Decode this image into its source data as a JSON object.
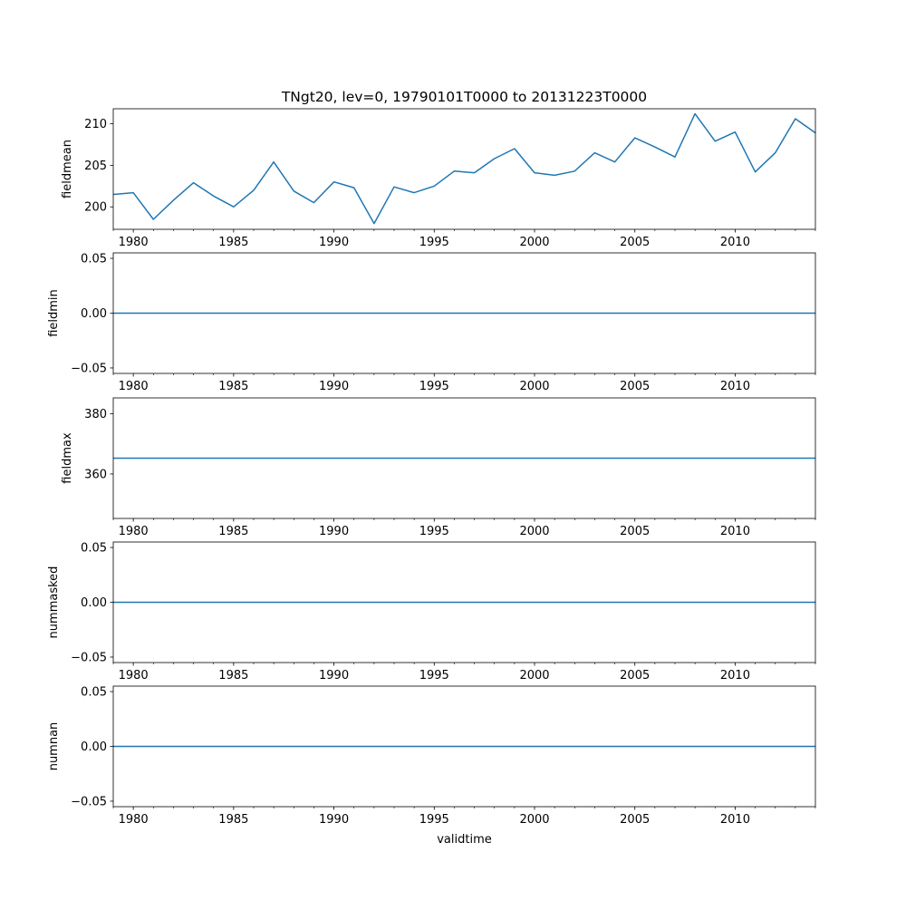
{
  "chart_data": [
    {
      "type": "line",
      "title": "TNgt20, lev=0, 19790101T0000 to 20131223T0000",
      "ylabel": "fieldmean",
      "xlabel": "",
      "xlim": [
        1979.0,
        2014.0
      ],
      "ylim": [
        197.3,
        211.8
      ],
      "yticks": [
        200,
        205,
        210
      ],
      "ytick_labels": [
        "200",
        "205",
        "210"
      ],
      "color": "#1f77b4",
      "x": [
        1979,
        1980,
        1981,
        1982,
        1983,
        1984,
        1985,
        1986,
        1987,
        1988,
        1989,
        1990,
        1991,
        1992,
        1993,
        1994,
        1995,
        1996,
        1997,
        1998,
        1999,
        2000,
        2001,
        2002,
        2003,
        2004,
        2005,
        2006,
        2007,
        2008,
        2009,
        2010,
        2011,
        2012,
        2013,
        2014
      ],
      "y": [
        201.5,
        201.7,
        198.5,
        200.8,
        202.9,
        201.3,
        200.0,
        202.0,
        205.4,
        201.9,
        200.5,
        203.0,
        202.3,
        198.0,
        202.4,
        201.7,
        202.5,
        204.3,
        204.1,
        205.8,
        207.0,
        204.1,
        203.8,
        204.3,
        206.5,
        205.4,
        208.3,
        207.2,
        206.0,
        211.2,
        207.9,
        209.0,
        204.2,
        206.5,
        210.6,
        208.9
      ]
    },
    {
      "type": "line",
      "ylabel": "fieldmin",
      "xlabel": "",
      "xlim": [
        1979.0,
        2014.0
      ],
      "ylim": [
        -0.055,
        0.055
      ],
      "yticks": [
        -0.05,
        0,
        0.05
      ],
      "ytick_labels": [
        "−0.05",
        "0.00",
        "0.05"
      ],
      "color": "#1f77b4",
      "x": [
        1979,
        2014
      ],
      "y": [
        0,
        0
      ]
    },
    {
      "type": "line",
      "ylabel": "fieldmax",
      "xlabel": "",
      "xlim": [
        1979.0,
        2014.0
      ],
      "ylim": [
        345.25,
        385.25
      ],
      "yticks": [
        360,
        380
      ],
      "ytick_labels": [
        "360",
        "380"
      ],
      "color": "#1f77b4",
      "x": [
        1979,
        2014
      ],
      "y": [
        365.25,
        365.25
      ]
    },
    {
      "type": "line",
      "ylabel": "nummasked",
      "xlabel": "",
      "xlim": [
        1979.0,
        2014.0
      ],
      "ylim": [
        -0.055,
        0.055
      ],
      "yticks": [
        -0.05,
        0,
        0.05
      ],
      "ytick_labels": [
        "−0.05",
        "0.00",
        "0.05"
      ],
      "color": "#1f77b4",
      "x": [
        1979,
        2014
      ],
      "y": [
        0,
        0
      ]
    },
    {
      "type": "line",
      "ylabel": "numnan",
      "xlabel": "validtime",
      "xlim": [
        1979.0,
        2014.0
      ],
      "ylim": [
        -0.055,
        0.055
      ],
      "yticks": [
        -0.05,
        0,
        0.05
      ],
      "ytick_labels": [
        "−0.05",
        "0.00",
        "0.05"
      ],
      "color": "#1f77b4",
      "x": [
        1979,
        2014
      ],
      "y": [
        0,
        0
      ]
    }
  ],
  "x_major_ticks": [
    1980,
    1985,
    1990,
    1995,
    2000,
    2005,
    2010
  ],
  "x_tick_labels": [
    "1980",
    "1985",
    "1990",
    "1995",
    "2000",
    "2005",
    "2010"
  ]
}
